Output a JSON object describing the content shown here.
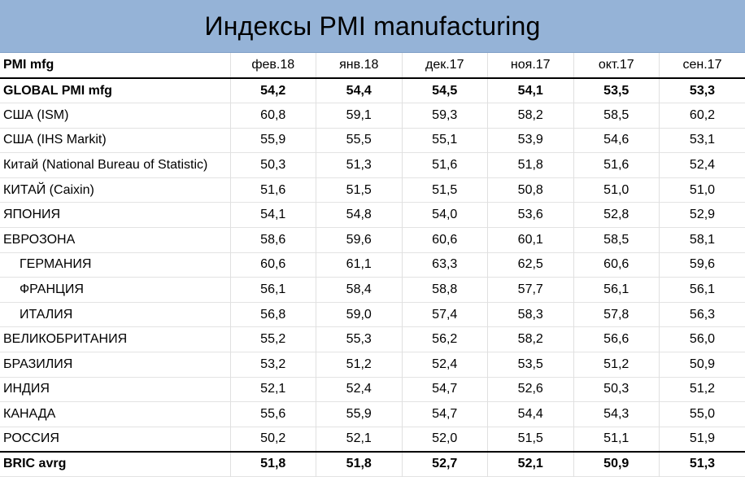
{
  "title": "Индексы PMI manufacturing",
  "chart_data": {
    "type": "table",
    "title": "Индексы PMI manufacturing",
    "header_label": "PMI mfg",
    "columns": [
      "фев.18",
      "янв.18",
      "дек.17",
      "ноя.17",
      "окт.17",
      "сен.17"
    ],
    "rows": [
      {
        "label": "GLOBAL PMI mfg",
        "bold": true,
        "values": [
          "54,2",
          "54,4",
          "54,5",
          "54,1",
          "53,5",
          "53,3"
        ]
      },
      {
        "label": "США (ISM)",
        "values": [
          "60,8",
          "59,1",
          "59,3",
          "58,2",
          "58,5",
          "60,2"
        ]
      },
      {
        "label": "США (IHS Markit)",
        "values": [
          "55,9",
          "55,5",
          "55,1",
          "53,9",
          "54,6",
          "53,1"
        ]
      },
      {
        "label": "Китай (National Bureau of Statistic)",
        "values": [
          "50,3",
          "51,3",
          "51,6",
          "51,8",
          "51,6",
          "52,4"
        ]
      },
      {
        "label": "КИТАЙ (Caixin)",
        "values": [
          "51,6",
          "51,5",
          "51,5",
          "50,8",
          "51,0",
          "51,0"
        ]
      },
      {
        "label": "ЯПОНИЯ",
        "values": [
          "54,1",
          "54,8",
          "54,0",
          "53,6",
          "52,8",
          "52,9"
        ]
      },
      {
        "label": "ЕВРОЗОНА",
        "values": [
          "58,6",
          "59,6",
          "60,6",
          "60,1",
          "58,5",
          "58,1"
        ]
      },
      {
        "label": "ГЕРМАНИЯ",
        "indent": true,
        "values": [
          "60,6",
          "61,1",
          "63,3",
          "62,5",
          "60,6",
          "59,6"
        ]
      },
      {
        "label": "ФРАНЦИЯ",
        "indent": true,
        "values": [
          "56,1",
          "58,4",
          "58,8",
          "57,7",
          "56,1",
          "56,1"
        ]
      },
      {
        "label": "ИТАЛИЯ",
        "indent": true,
        "values": [
          "56,8",
          "59,0",
          "57,4",
          "58,3",
          "57,8",
          "56,3"
        ]
      },
      {
        "label": "ВЕЛИКОБРИТАНИЯ",
        "values": [
          "55,2",
          "55,3",
          "56,2",
          "58,2",
          "56,6",
          "56,0"
        ]
      },
      {
        "label": "БРАЗИЛИЯ",
        "values": [
          "53,2",
          "51,2",
          "52,4",
          "53,5",
          "51,2",
          "50,9"
        ]
      },
      {
        "label": "ИНДИЯ",
        "values": [
          "52,1",
          "52,4",
          "54,7",
          "52,6",
          "50,3",
          "51,2"
        ]
      },
      {
        "label": "КАНАДА",
        "values": [
          "55,6",
          "55,9",
          "54,7",
          "54,4",
          "54,3",
          "55,0"
        ]
      },
      {
        "label": "РОССИЯ",
        "values": [
          "50,2",
          "52,1",
          "52,0",
          "51,5",
          "51,1",
          "51,9"
        ]
      },
      {
        "label": "BRIC avrg",
        "bold": true,
        "values": [
          "51,8",
          "51,8",
          "52,7",
          "52,1",
          "50,9",
          "51,3"
        ]
      }
    ]
  }
}
